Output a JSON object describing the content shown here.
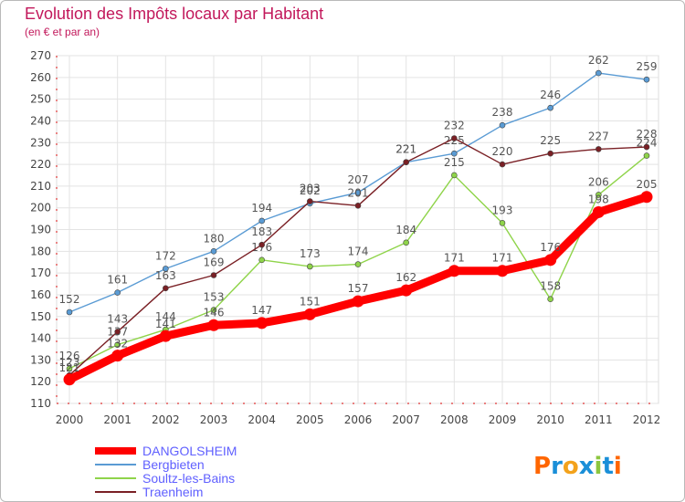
{
  "chart_data": {
    "type": "line",
    "title": "Evolution des Impôts locaux par Habitant",
    "subtitle": "(en € et par an)",
    "categories": [
      "2000",
      "2001",
      "2002",
      "2003",
      "2004",
      "2005",
      "2006",
      "2007",
      "2008",
      "2009",
      "2010",
      "2011",
      "2012"
    ],
    "ylim": [
      110,
      270
    ],
    "yticks": [
      110,
      120,
      130,
      140,
      150,
      160,
      170,
      180,
      190,
      200,
      210,
      220,
      230,
      240,
      250,
      260,
      270
    ],
    "grid": true,
    "series": [
      {
        "name": "DANGOLSHEIM",
        "color": "#ff0000",
        "values": [
          121,
          132,
          141,
          146,
          147,
          151,
          157,
          162,
          171,
          171,
          176,
          198,
          205
        ],
        "labels": [
          "",
          "",
          "",
          "146",
          "147",
          "151",
          "157",
          "162",
          "171",
          "171",
          "176",
          "198",
          "205"
        ],
        "thick": true
      },
      {
        "name": "Bergbieten",
        "color": "#5a9bd4",
        "values": [
          152,
          161,
          172,
          180,
          194,
          202,
          207,
          221,
          225,
          238,
          246,
          262,
          259
        ],
        "labels": [
          "152",
          "161",
          "172",
          "180",
          "194",
          "202",
          "207",
          "221",
          "225",
          "238",
          "246",
          "262",
          "259"
        ]
      },
      {
        "name": "Soultz-les-Bains",
        "color": "#8fd44a",
        "values": [
          126,
          137,
          144,
          153,
          176,
          173,
          174,
          184,
          215,
          193,
          158,
          206,
          224
        ],
        "labels": [
          "126",
          "137",
          "144",
          "153",
          "176",
          "173",
          "174",
          "184",
          "215",
          "193",
          "158",
          "206",
          "224"
        ]
      },
      {
        "name": "Traenheim",
        "color": "#7a2025",
        "values": [
          123,
          143,
          163,
          169,
          183,
          203,
          201,
          221,
          232,
          220,
          225,
          227,
          228
        ],
        "labels": [
          "123",
          "143",
          "163",
          "169",
          "183",
          "203",
          "201",
          "221",
          "232",
          "220",
          "225",
          "227",
          "228"
        ]
      }
    ],
    "extra_labels": [
      "121",
      "132",
      "141"
    ]
  },
  "logo": {
    "text": "Proxiti",
    "letters": [
      "P",
      "r",
      "o",
      "x",
      "i",
      "t",
      "i"
    ],
    "colors": [
      "#ff6600",
      "#1a8fd8",
      "#f3a21b",
      "#1a8fd8",
      "#8cc63f",
      "#1a8fd8",
      "#ff6600"
    ]
  }
}
